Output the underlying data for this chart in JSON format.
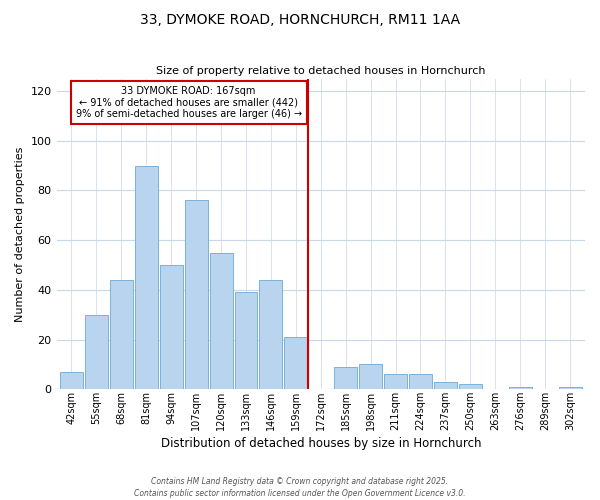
{
  "title": "33, DYMOKE ROAD, HORNCHURCH, RM11 1AA",
  "subtitle": "Size of property relative to detached houses in Hornchurch",
  "xlabel": "Distribution of detached houses by size in Hornchurch",
  "ylabel": "Number of detached properties",
  "bin_labels": [
    "42sqm",
    "55sqm",
    "68sqm",
    "81sqm",
    "94sqm",
    "107sqm",
    "120sqm",
    "133sqm",
    "146sqm",
    "159sqm",
    "172sqm",
    "185sqm",
    "198sqm",
    "211sqm",
    "224sqm",
    "237sqm",
    "250sqm",
    "263sqm",
    "276sqm",
    "289sqm",
    "302sqm"
  ],
  "bar_values": [
    7,
    30,
    44,
    90,
    50,
    76,
    55,
    39,
    44,
    21,
    0,
    9,
    10,
    6,
    6,
    3,
    2,
    0,
    1,
    0,
    1
  ],
  "bar_color": "#b8d4ee",
  "bar_edge_color": "#6aaad4",
  "grid_color": "#c8d8e8",
  "vline_x_index": 10,
  "vline_color": "#cc0000",
  "annotation_title": "33 DYMOKE ROAD: 167sqm",
  "annotation_line1": "← 91% of detached houses are smaller (442)",
  "annotation_line2": "9% of semi-detached houses are larger (46) →",
  "annotation_box_edge_color": "#cc0000",
  "ylim": [
    0,
    125
  ],
  "yticks": [
    0,
    20,
    40,
    60,
    80,
    100,
    120
  ],
  "footer1": "Contains HM Land Registry data © Crown copyright and database right 2025.",
  "footer2": "Contains public sector information licensed under the Open Government Licence v3.0."
}
